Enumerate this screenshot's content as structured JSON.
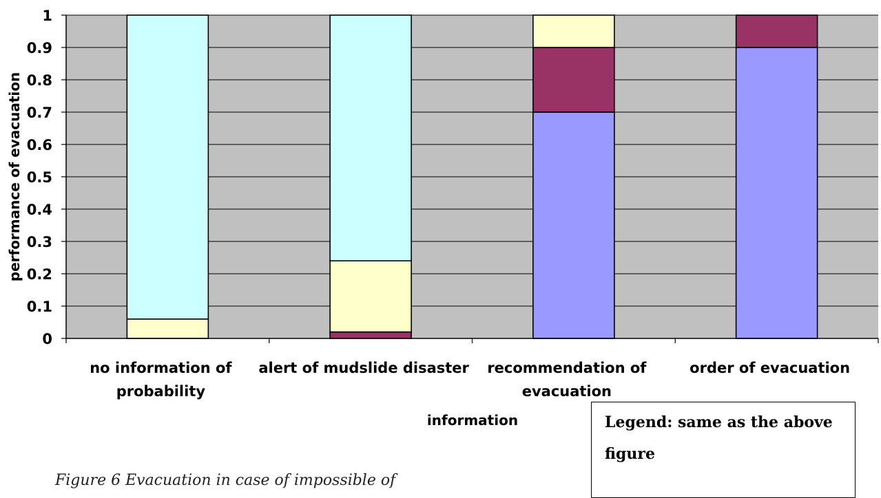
{
  "chart_data": {
    "type": "bar",
    "stacked": true,
    "categories": [
      [
        "no information of",
        "probability"
      ],
      [
        "alert of mudslide disaster"
      ],
      [
        "recommendation of",
        "evacuation"
      ],
      [
        "order of evacuation"
      ]
    ],
    "series": [
      {
        "color": "#9999ff",
        "values": [
          0,
          0,
          0.7,
          0.9
        ]
      },
      {
        "color": "#993366",
        "values": [
          0,
          0.02,
          0.2,
          0.1
        ]
      },
      {
        "color": "#ffffcc",
        "values": [
          0.06,
          0.22,
          0.1,
          0
        ]
      },
      {
        "color": "#ccffff",
        "values": [
          0.94,
          0.76,
          0,
          0
        ]
      }
    ],
    "ylim": [
      0,
      1
    ],
    "yticks": [
      "0",
      "0.1",
      "0.2",
      "0.3",
      "0.4",
      "0.5",
      "0.6",
      "0.7",
      "0.8",
      "0.9",
      "1"
    ],
    "xlabel": "information",
    "ylabel": "performance of evacuation",
    "grid": true,
    "plot_background": "#c0c0c0"
  },
  "legend_note": "Legend: same as the above figure",
  "caption": "Figure 6 Evacuation in case of impossible of"
}
